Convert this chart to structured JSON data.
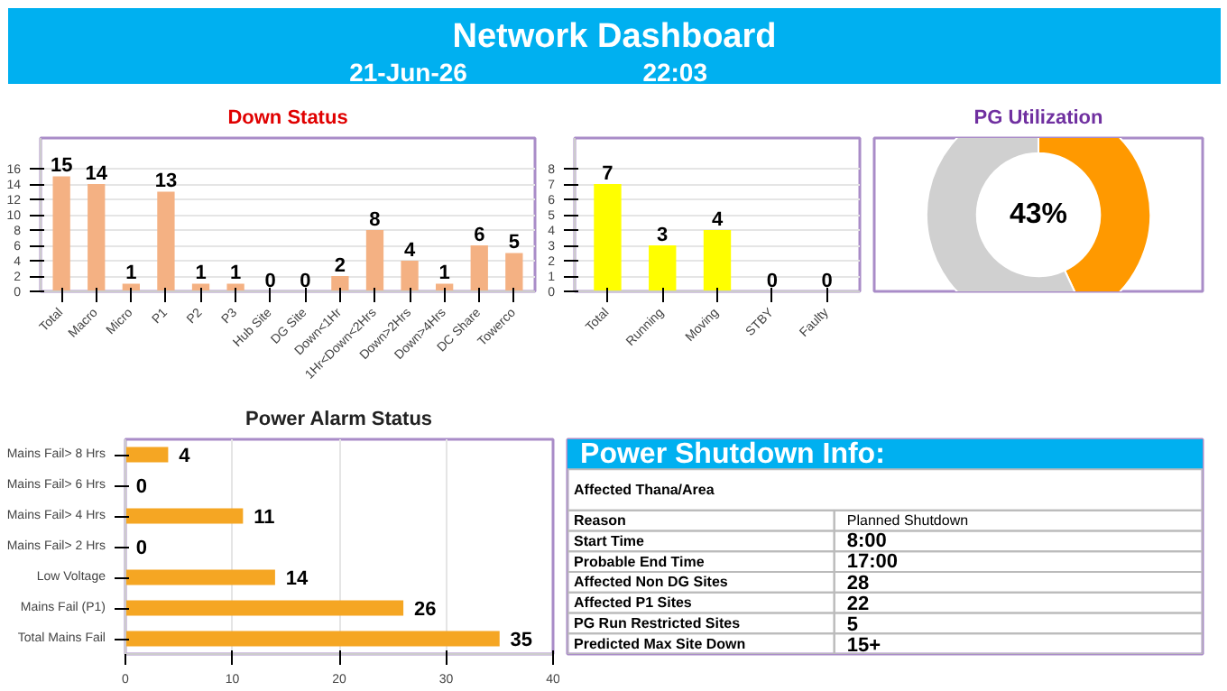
{
  "chart_data": [
    {
      "type": "other",
      "title": "Network Dashboard",
      "annotations": [
        "21-Jun-26",
        "22:03"
      ]
    },
    {
      "type": "bar",
      "title": "Down Status",
      "categories": [
        "Total",
        "Macro",
        "Micro",
        "P1",
        "P2",
        "P3",
        "Hub Site",
        "DG Site",
        "Down<1Hr",
        "1Hr<Down<2Hrs",
        "Down>2Hrs",
        "Down>4Hrs",
        "DC Share",
        "Towerco"
      ],
      "values": [
        15,
        14,
        1,
        13,
        1,
        1,
        0,
        0,
        2,
        8,
        4,
        1,
        6,
        5
      ],
      "color": "#f4b183",
      "ylim": [
        0,
        16
      ],
      "yticks": [
        0,
        2,
        4,
        6,
        8,
        10,
        12,
        14,
        16
      ],
      "grid": "y",
      "data_labels": true
    },
    {
      "type": "bar",
      "categories": [
        "Total",
        "Running",
        "Moving",
        "STBY",
        "Faulty"
      ],
      "values": [
        7,
        3,
        4,
        0,
        0
      ],
      "color": "#ffff00",
      "ylim": [
        0,
        8
      ],
      "yticks": [
        0,
        1,
        2,
        3,
        4,
        5,
        6,
        7,
        8
      ],
      "grid": "y",
      "data_labels": true
    },
    {
      "type": "donut",
      "title": "PG Utilization",
      "categories": [
        null,
        null
      ],
      "values": [
        43,
        57
      ],
      "colors": [
        "#ff9900",
        "#d0d0d0"
      ],
      "annotations": [
        "43%"
      ]
    },
    {
      "type": "bar",
      "orientation": "horizontal",
      "title": "Power Alarm Status",
      "categories": [
        "Mains Fail> 8 Hrs",
        "Mains Fail> 6 Hrs",
        "Mains Fail> 4 Hrs",
        "Mains Fail> 2 Hrs",
        "Low Voltage",
        "Mains Fail (P1)",
        "Total Mains Fail"
      ],
      "values": [
        4,
        0,
        11,
        0,
        14,
        26,
        35
      ],
      "color": "#f5a623",
      "xlim": [
        0,
        40
      ],
      "xticks": [
        0,
        10,
        20,
        30,
        40
      ],
      "grid": "x",
      "data_labels": true
    },
    {
      "type": "other",
      "title": "Power Shutdown Info:",
      "annotations": [
        "Affected Thana/Area",
        "Reason",
        "Planned Shutdown",
        "Start Time",
        "8:00",
        "Probable End Time",
        "17:00",
        "Affected Non DG Sites",
        "28",
        "Affected P1 Sites",
        "22",
        "PG Run Restricted Sites",
        "5",
        "Predicted Max Site Down",
        "15+"
      ]
    }
  ]
}
